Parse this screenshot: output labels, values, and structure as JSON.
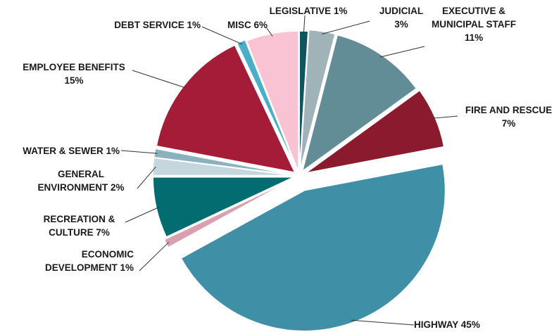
{
  "chart_data": {
    "type": "pie",
    "categories": [
      "LEGISLATIVE",
      "JUDICIAL",
      "EXECUTIVE & MUNICIPAL STAFF",
      "FIRE AND RESCUE",
      "HIGHWAY",
      "ECONOMIC DEVELOPMENT",
      "RECREATION & CULTURE",
      "GENERAL ENVIRONMENT",
      "WATER & SEWER",
      "EMPLOYEE BENEFITS",
      "DEBT SERVICE",
      "MISC"
    ],
    "values": [
      1,
      3,
      11,
      7,
      45,
      1,
      7,
      2,
      1,
      15,
      1,
      6
    ],
    "value_labels": [
      "1%",
      "3%",
      "11%",
      "7%",
      "45%",
      "1%",
      "7%",
      "2%",
      "1%",
      "15%",
      "1%",
      "6%"
    ],
    "colors": [
      "#0e5560",
      "#9fb3b9",
      "#628d96",
      "#8b1a2e",
      "#3f8fa6",
      "#d9a0b0",
      "#036c70",
      "#c5d6dc",
      "#8ab2bc",
      "#a51c38",
      "#4aaec8",
      "#f9c3d3"
    ]
  }
}
